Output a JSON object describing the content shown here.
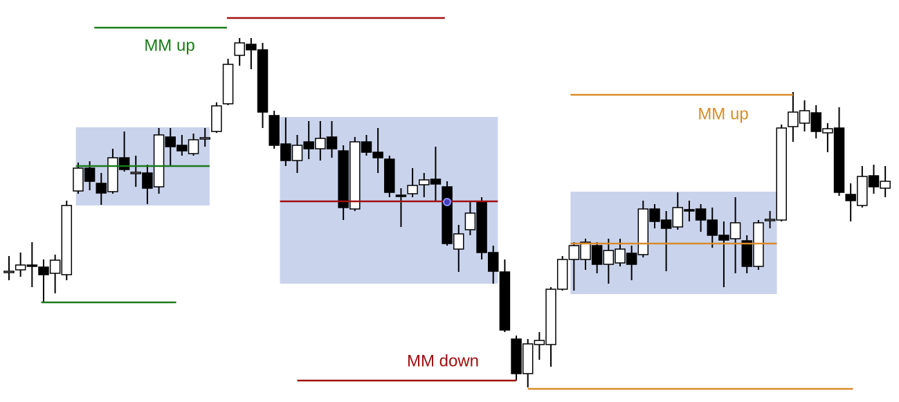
{
  "chart_data": {
    "type": "candlestick",
    "open": [
      187,
      191,
      198,
      195,
      186,
      184,
      305,
      338,
      316,
      304,
      353,
      330,
      331,
      311,
      383,
      371,
      359,
      381,
      391,
      431,
      501,
      517,
      509,
      414,
      373,
      349,
      376,
      366,
      383,
      363,
      279,
      376,
      361,
      351,
      299,
      301,
      314,
      322,
      311,
      221,
      249,
      289,
      216,
      188,
      91,
      41,
      83,
      83,
      163,
      206,
      206,
      226,
      199,
      201,
      215,
      213,
      279,
      263,
      253,
      278,
      279,
      263,
      241,
      236,
      233,
      196,
      263,
      263,
      398,
      403,
      418,
      389,
      396,
      300,
      284,
      327,
      309
    ],
    "high": [
      211,
      216,
      231,
      206,
      213,
      291,
      346,
      348,
      331,
      366,
      391,
      356,
      343,
      396,
      396,
      386,
      388,
      396,
      433,
      496,
      526,
      526,
      519,
      421,
      411,
      386,
      406,
      406,
      406,
      371,
      383,
      386,
      396,
      356,
      309,
      338,
      331,
      369,
      319,
      256,
      291,
      296,
      226,
      206,
      96,
      91,
      101,
      166,
      211,
      231,
      236,
      231,
      236,
      236,
      226,
      291,
      286,
      276,
      303,
      291,
      286,
      281,
      261,
      296,
      241,
      263,
      276,
      401,
      448,
      436,
      429,
      403,
      426,
      316,
      341,
      343,
      341
    ],
    "low": [
      176,
      181,
      166,
      144,
      157,
      176,
      301,
      306,
      285,
      301,
      333,
      311,
      286,
      301,
      341,
      356,
      356,
      369,
      389,
      429,
      486,
      481,
      396,
      366,
      341,
      331,
      351,
      349,
      353,
      263,
      276,
      356,
      331,
      296,
      253,
      296,
      296,
      291,
      226,
      188,
      241,
      206,
      171,
      101,
      31,
      21,
      61,
      51,
      161,
      161,
      191,
      186,
      171,
      196,
      176,
      209,
      251,
      189,
      249,
      261,
      246,
      223,
      166,
      186,
      186,
      191,
      251,
      261,
      376,
      391,
      381,
      361,
      298,
      261,
      281,
      301,
      296
    ],
    "close": [
      189,
      198,
      196,
      184,
      205,
      284,
      338,
      319,
      302,
      353,
      336,
      332,
      309,
      386,
      369,
      363,
      379,
      382,
      428,
      488,
      519,
      509,
      419,
      371,
      349,
      371,
      366,
      381,
      366,
      281,
      376,
      361,
      353,
      303,
      298,
      313,
      321,
      315,
      229,
      243,
      273,
      216,
      189,
      104,
      41,
      84,
      89,
      163,
      206,
      226,
      231,
      199,
      219,
      221,
      199,
      279,
      261,
      251,
      281,
      277,
      263,
      241,
      234,
      259,
      196,
      259,
      264,
      396,
      419,
      421,
      391,
      395,
      303,
      291,
      326,
      311,
      319
    ],
    "ylim": [
      0,
      581
    ],
    "zones": [
      {
        "from": 5.8,
        "to": 17.4,
        "top": 397,
        "bottom": 284,
        "color": "#c9d3ec"
      },
      {
        "from": 23.5,
        "to": 42.4,
        "top": 412,
        "bottom": 171,
        "color": "#c9d3ec"
      },
      {
        "from": 48.7,
        "to": 66.6,
        "top": 304,
        "bottom": 156,
        "color": "#c9d3ec"
      }
    ],
    "levels": [
      {
        "value": 541,
        "from": 7.4,
        "to": 18.9,
        "color": "#1a7a1a"
      },
      {
        "value": 144,
        "from": 2.8,
        "to": 14.5,
        "color": "#1a7a1a"
      },
      {
        "value": 341,
        "from": 5.8,
        "to": 17.4,
        "color": "#1a7a1a"
      },
      {
        "value": 555,
        "from": 18.9,
        "to": 37.8,
        "color": "#a01010"
      },
      {
        "value": 290,
        "from": 23.5,
        "to": 42.4,
        "color": "#a01010"
      },
      {
        "value": 31,
        "from": 25.0,
        "to": 44.0,
        "color": "#a01010"
      },
      {
        "value": 444,
        "from": 48.7,
        "to": 68.0,
        "color": "#d98b2a"
      },
      {
        "value": 229,
        "from": 48.7,
        "to": 66.6,
        "color": "#d98b2a"
      },
      {
        "value": 19,
        "from": 45.0,
        "to": 73.2,
        "color": "#d98b2a"
      }
    ],
    "annotations": [
      {
        "text": "MM up",
        "color": "#1a7a1a"
      },
      {
        "text": "MM down",
        "color": "#a01010"
      },
      {
        "text": "MM up",
        "color": "#d98b2a"
      }
    ]
  }
}
